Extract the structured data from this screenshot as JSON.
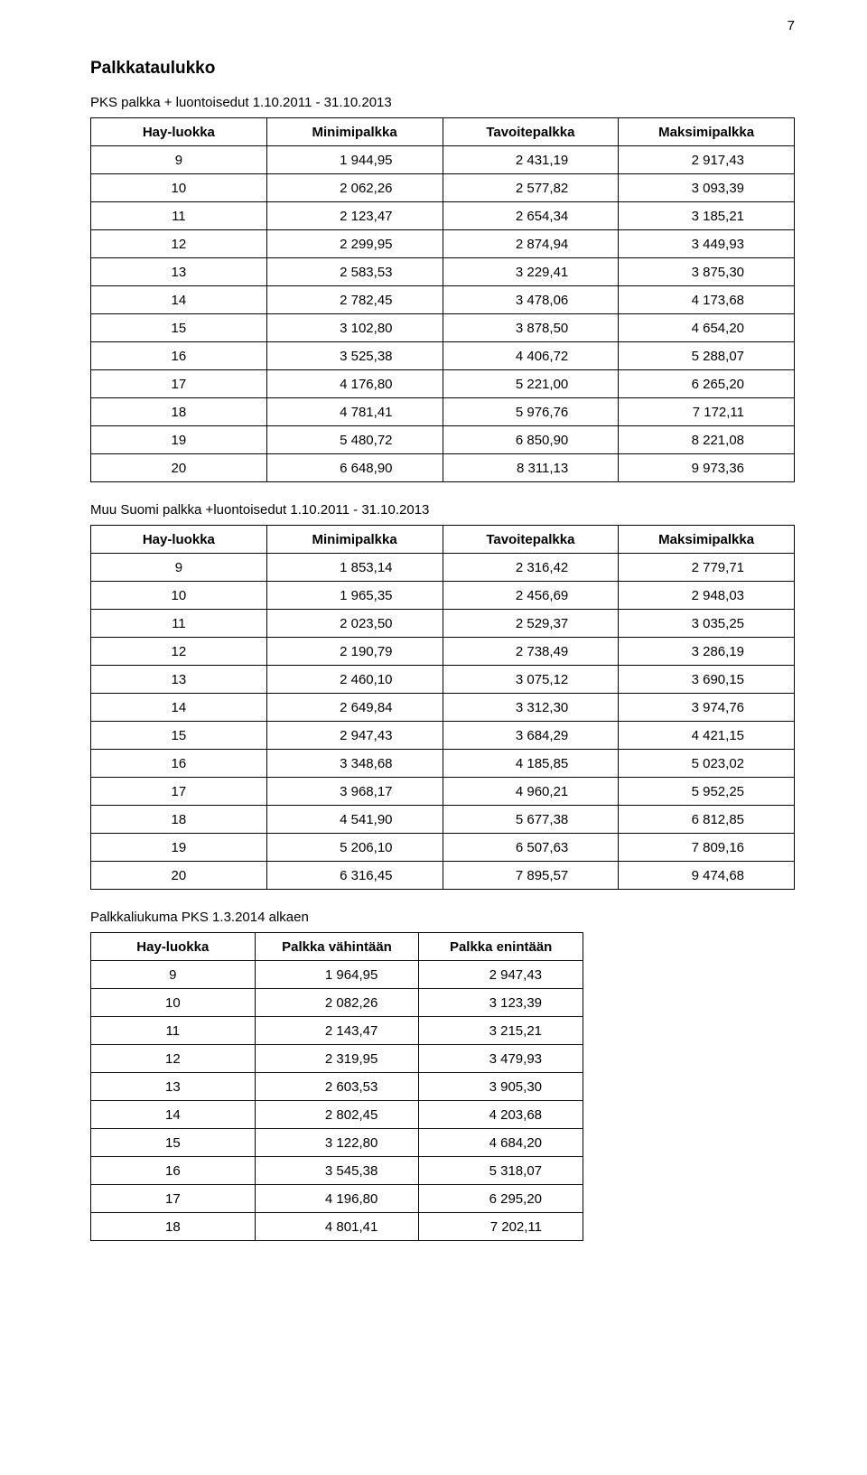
{
  "page_number": "7",
  "main_heading": "Palkkataulukko",
  "tables": [
    {
      "title": "PKS palkka + luontoisedut 1.10.2011 - 31.10.2013",
      "columns": [
        "Hay-luokka",
        "Minimipalkka",
        "Tavoitepalkka",
        "Maksimipalkka"
      ],
      "rows": [
        [
          "9",
          "1 944,95",
          "2 431,19",
          "2 917,43"
        ],
        [
          "10",
          "2 062,26",
          "2 577,82",
          "3 093,39"
        ],
        [
          "11",
          "2 123,47",
          "2 654,34",
          "3 185,21"
        ],
        [
          "12",
          "2 299,95",
          "2 874,94",
          "3 449,93"
        ],
        [
          "13",
          "2 583,53",
          "3 229,41",
          "3 875,30"
        ],
        [
          "14",
          "2 782,45",
          "3 478,06",
          "4 173,68"
        ],
        [
          "15",
          "3 102,80",
          "3 878,50",
          "4 654,20"
        ],
        [
          "16",
          "3 525,38",
          "4 406,72",
          "5 288,07"
        ],
        [
          "17",
          "4 176,80",
          "5 221,00",
          "6 265,20"
        ],
        [
          "18",
          "4 781,41",
          "5 976,76",
          "7 172,11"
        ],
        [
          "19",
          "5 480,72",
          "6 850,90",
          "8 221,08"
        ],
        [
          "20",
          "6 648,90",
          "8 311,13",
          "9 973,36"
        ]
      ]
    },
    {
      "title": "Muu Suomi palkka +luontoisedut 1.10.2011 - 31.10.2013",
      "columns": [
        "Hay-luokka",
        "Minimipalkka",
        "Tavoitepalkka",
        "Maksimipalkka"
      ],
      "rows": [
        [
          "9",
          "1 853,14",
          "2 316,42",
          "2 779,71"
        ],
        [
          "10",
          "1 965,35",
          "2 456,69",
          "2 948,03"
        ],
        [
          "11",
          "2 023,50",
          "2 529,37",
          "3 035,25"
        ],
        [
          "12",
          "2 190,79",
          "2 738,49",
          "3 286,19"
        ],
        [
          "13",
          "2 460,10",
          "3 075,12",
          "3 690,15"
        ],
        [
          "14",
          "2 649,84",
          "3 312,30",
          "3 974,76"
        ],
        [
          "15",
          "2 947,43",
          "3 684,29",
          "4 421,15"
        ],
        [
          "16",
          "3 348,68",
          "4 185,85",
          "5 023,02"
        ],
        [
          "17",
          "3 968,17",
          "4 960,21",
          "5 952,25"
        ],
        [
          "18",
          "4 541,90",
          "5 677,38",
          "6 812,85"
        ],
        [
          "19",
          "5 206,10",
          "6 507,63",
          "7 809,16"
        ],
        [
          "20",
          "6 316,45",
          "7 895,57",
          "9 474,68"
        ]
      ]
    },
    {
      "title": "Palkkaliukuma PKS 1.3.2014 alkaen",
      "columns": [
        "Hay-luokka",
        "Palkka vähintään",
        "Palkka enintään"
      ],
      "rows": [
        [
          "9",
          "1 964,95",
          "2 947,43"
        ],
        [
          "10",
          "2 082,26",
          "3 123,39"
        ],
        [
          "11",
          "2 143,47",
          "3 215,21"
        ],
        [
          "12",
          "2 319,95",
          "3 479,93"
        ],
        [
          "13",
          "2 603,53",
          "3 905,30"
        ],
        [
          "14",
          "2 802,45",
          "4 203,68"
        ],
        [
          "15",
          "3 122,80",
          "4 684,20"
        ],
        [
          "16",
          "3 545,38",
          "5 318,07"
        ],
        [
          "17",
          "4 196,80",
          "6 295,20"
        ],
        [
          "18",
          "4 801,41",
          "7 202,11"
        ]
      ]
    }
  ]
}
